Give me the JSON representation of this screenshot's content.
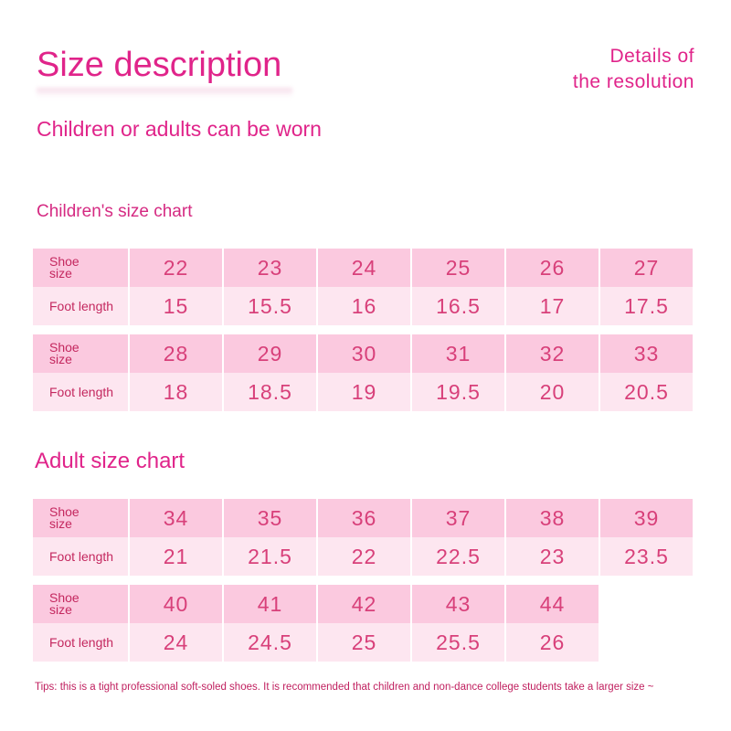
{
  "title": "Size description",
  "details_label": [
    "Details of",
    "the resolution"
  ],
  "subtitle": "Children or adults can be worn",
  "children_heading": "Children's size chart",
  "adult_heading": "Adult size chart",
  "row_labels": {
    "shoe_size": [
      "Shoe",
      "size"
    ],
    "foot_length": "Foot length"
  },
  "children_tables": [
    {
      "shoe_sizes": [
        "22",
        "23",
        "24",
        "25",
        "26",
        "27"
      ],
      "foot_lengths": [
        "15",
        "15.5",
        "16",
        "16.5",
        "17",
        "17.5"
      ]
    },
    {
      "shoe_sizes": [
        "28",
        "29",
        "30",
        "31",
        "32",
        "33"
      ],
      "foot_lengths": [
        "18",
        "18.5",
        "19",
        "19.5",
        "20",
        "20.5"
      ]
    }
  ],
  "adult_tables": [
    {
      "shoe_sizes": [
        "34",
        "35",
        "36",
        "37",
        "38",
        "39"
      ],
      "foot_lengths": [
        "21",
        "21.5",
        "22",
        "22.5",
        "23",
        "23.5"
      ]
    },
    {
      "shoe_sizes": [
        "40",
        "41",
        "42",
        "43",
        "44"
      ],
      "foot_lengths": [
        "24",
        "24.5",
        "25",
        "25.5",
        "26"
      ]
    }
  ],
  "tips": "Tips: this is a tight professional soft-soled shoes. It is recommended that children and non-dance college students take a larger size ~",
  "colors": {
    "accent": "#e0248a",
    "shoe_row_bg": "#fbc9df",
    "foot_row_bg": "#fde6f0"
  }
}
